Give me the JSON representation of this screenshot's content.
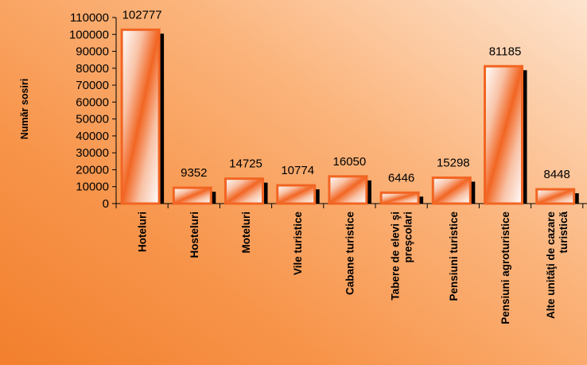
{
  "chart_data": {
    "type": "bar",
    "title": "",
    "xlabel": "",
    "ylabel": "Număr sosiri",
    "categories": [
      [
        "Hoteluri"
      ],
      [
        "Hosteluri"
      ],
      [
        "Moteluri"
      ],
      [
        "Vile turistice"
      ],
      [
        "Cabane turistice"
      ],
      [
        "Tabere de elevi şi",
        "preşcolari"
      ],
      [
        "Pensiuni turistice"
      ],
      [
        "Pensiuni  agroturistice"
      ],
      [
        "Alte unităţi de cazare",
        "turistică"
      ]
    ],
    "values": [
      102777,
      9352,
      14725,
      10774,
      16050,
      6446,
      15298,
      81185,
      8448
    ],
    "ylim": [
      0,
      110000
    ],
    "yticks": [
      0,
      10000,
      20000,
      30000,
      40000,
      50000,
      60000,
      70000,
      80000,
      90000,
      100000,
      110000
    ],
    "grid": false,
    "legend": "none",
    "colors": {
      "bar_edge": "#f26522",
      "bar_light": "#ffffff",
      "bar_mid": "#f6a37e",
      "bar_shadow": "#000000"
    }
  }
}
